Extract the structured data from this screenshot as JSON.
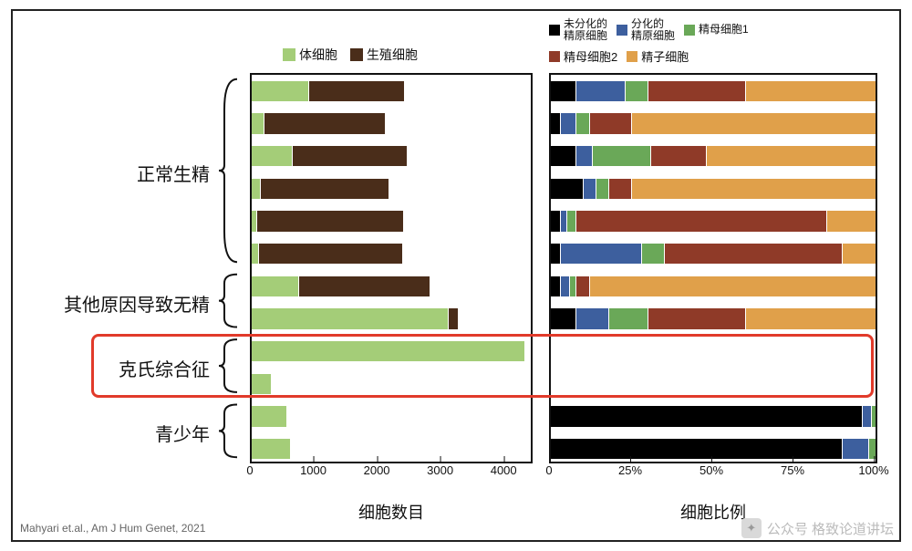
{
  "frame": {
    "border_color": "#222222"
  },
  "left_legend": {
    "items": [
      {
        "label": "体细胞",
        "color": "#a4cd78"
      },
      {
        "label": "生殖细胞",
        "color": "#4a2d1a"
      }
    ]
  },
  "right_legend_line1": {
    "items": [
      {
        "label": "未分化的\n精原细胞",
        "color": "#000000"
      },
      {
        "label": "分化的\n精原细胞",
        "color": "#3d5f9e"
      },
      {
        "label": "精母细胞1",
        "color": "#6aa858"
      }
    ]
  },
  "right_legend_line2": {
    "items": [
      {
        "label": "精母细胞2",
        "color": "#8f3a28"
      },
      {
        "label": "精子细胞",
        "color": "#e0a04a"
      }
    ]
  },
  "row_groups": [
    {
      "label": "正常生精",
      "rows": 6
    },
    {
      "label": "其他原因导致无精",
      "rows": 2
    },
    {
      "label": "克氏综合征",
      "rows": 2
    },
    {
      "label": "青少年",
      "rows": 2
    }
  ],
  "left_chart": {
    "title": "细胞数目",
    "xlim": [
      0,
      4400
    ],
    "ticks": [
      0,
      1000,
      2000,
      3000,
      4000
    ],
    "rows": [
      {
        "soma": 900,
        "germ": 1500
      },
      {
        "soma": 200,
        "germ": 1900
      },
      {
        "soma": 650,
        "germ": 1800
      },
      {
        "soma": 150,
        "germ": 2000
      },
      {
        "soma": 80,
        "germ": 2300
      },
      {
        "soma": 120,
        "germ": 2250
      },
      {
        "soma": 750,
        "germ": 2050
      },
      {
        "soma": 3100,
        "germ": 150
      },
      {
        "soma": 4300,
        "germ": 0
      },
      {
        "soma": 300,
        "germ": 0
      },
      {
        "soma": 550,
        "germ": 0
      },
      {
        "soma": 600,
        "germ": 0
      }
    ],
    "soma_color": "#a4cd78",
    "germ_color": "#4a2d1a"
  },
  "right_chart": {
    "title": "细胞比例",
    "xlim": [
      0,
      100
    ],
    "ticks": [
      "0",
      "25%",
      "50%",
      "75%",
      "100%"
    ],
    "colors": {
      "undiff": "#000000",
      "diff": "#3d5f9e",
      "sp1": "#6aa858",
      "sp2": "#8f3a28",
      "st": "#e0a04a"
    },
    "rows": [
      {
        "undiff": 8,
        "diff": 15,
        "sp1": 7,
        "sp2": 30,
        "st": 40
      },
      {
        "undiff": 3,
        "diff": 5,
        "sp1": 4,
        "sp2": 13,
        "st": 75
      },
      {
        "undiff": 8,
        "diff": 5,
        "sp1": 18,
        "sp2": 17,
        "st": 52
      },
      {
        "undiff": 10,
        "diff": 4,
        "sp1": 4,
        "sp2": 7,
        "st": 75
      },
      {
        "undiff": 3,
        "diff": 2,
        "sp1": 3,
        "sp2": 77,
        "st": 15
      },
      {
        "undiff": 3,
        "diff": 25,
        "sp1": 7,
        "sp2": 55,
        "st": 10
      },
      {
        "undiff": 3,
        "diff": 3,
        "sp1": 2,
        "sp2": 4,
        "st": 88
      },
      {
        "undiff": 8,
        "diff": 10,
        "sp1": 12,
        "sp2": 30,
        "st": 40
      },
      null,
      null,
      {
        "undiff": 96,
        "diff": 3,
        "sp1": 1,
        "sp2": 0,
        "st": 0
      },
      {
        "undiff": 90,
        "diff": 8,
        "sp1": 2,
        "sp2": 0,
        "st": 0
      }
    ]
  },
  "highlight": {
    "label": "克氏综合征",
    "row_start": 8,
    "row_end": 9
  },
  "citation": "Mahyari et.al., Am J Hum Genet, 2021",
  "watermark": "公众号   格致论道讲坛"
}
